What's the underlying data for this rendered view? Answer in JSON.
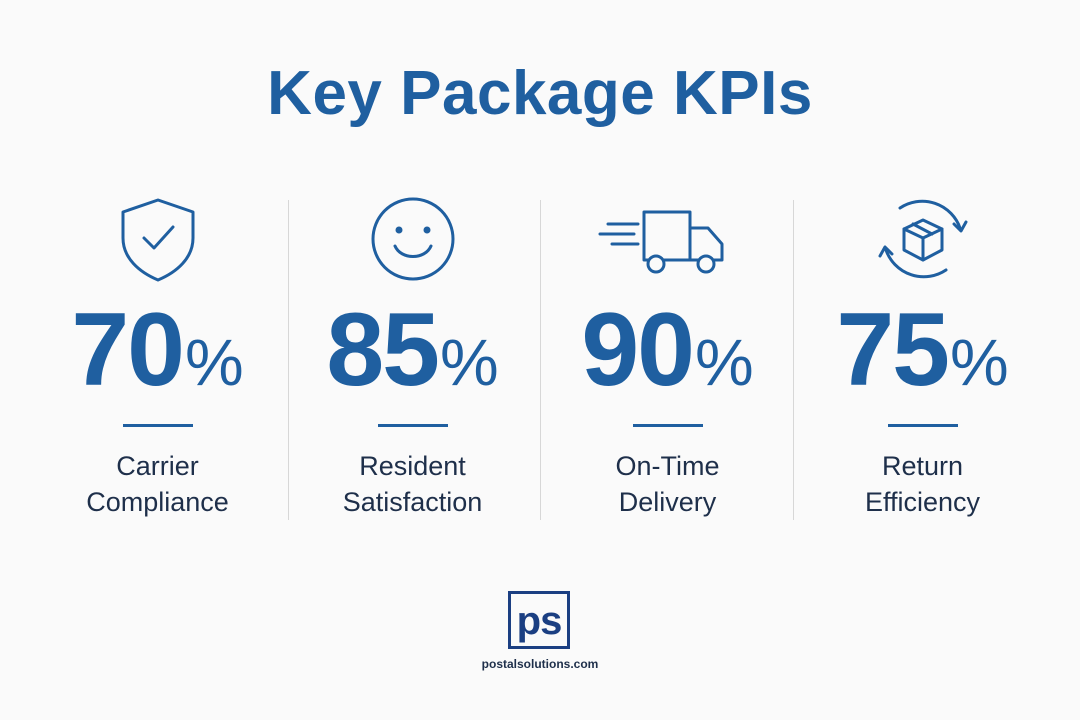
{
  "title": "Key Package KPIs",
  "accent_color": "#1f5fa0",
  "label_color": "#1e2f4a",
  "kpis": [
    {
      "icon": "shield-check-icon",
      "value": "70",
      "unit": "%",
      "label_line1": "Carrier",
      "label_line2": "Compliance"
    },
    {
      "icon": "smiley-face-icon",
      "value": "85",
      "unit": "%",
      "label_line1": "Resident",
      "label_line2": "Satisfaction"
    },
    {
      "icon": "delivery-truck-icon",
      "value": "90",
      "unit": "%",
      "label_line1": "On-Time",
      "label_line2": "Delivery"
    },
    {
      "icon": "package-return-icon",
      "value": "75",
      "unit": "%",
      "label_line1": "Return",
      "label_line2": "Efficiency"
    }
  ],
  "logo": {
    "text": "ps",
    "url": "postalsolutions.com"
  }
}
